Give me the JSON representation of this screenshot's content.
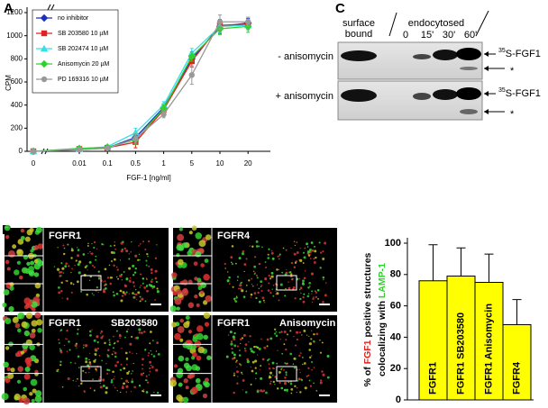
{
  "chart_data": [
    {
      "type": "line",
      "panel": "A",
      "ylabel": "CPM",
      "xlabel": "FGF-1 [ng/ml]",
      "categories": [
        "0",
        "0.01",
        "0.1",
        "0.5",
        "1",
        "5",
        "10",
        "20"
      ],
      "ylim": [
        0,
        1200
      ],
      "yticks": [
        0,
        200,
        400,
        600,
        800,
        1000,
        1200
      ],
      "series": [
        {
          "name": "no inhibitor",
          "color": "#1a2fbf",
          "marker": "diamond",
          "values": [
            0,
            15,
            30,
            120,
            380,
            800,
            1080,
            1110
          ],
          "errors": [
            5,
            10,
            15,
            40,
            30,
            40,
            60,
            40
          ]
        },
        {
          "name": "SB 203580 10 µM",
          "color": "#e0211d",
          "marker": "square",
          "values": [
            0,
            20,
            30,
            80,
            360,
            780,
            1090,
            1100
          ],
          "errors": [
            5,
            10,
            15,
            50,
            30,
            50,
            50,
            40
          ]
        },
        {
          "name": "SB 202474 10 µM",
          "color": "#33e0e6",
          "marker": "triangle",
          "values": [
            0,
            20,
            40,
            160,
            400,
            850,
            1080,
            1090
          ],
          "errors": [
            5,
            10,
            15,
            40,
            30,
            40,
            50,
            40
          ]
        },
        {
          "name": "Anisomycin 20 µM",
          "color": "#2ed12e",
          "marker": "diamond",
          "values": [
            0,
            25,
            35,
            100,
            370,
            820,
            1060,
            1080
          ],
          "errors": [
            5,
            10,
            15,
            40,
            30,
            40,
            50,
            50
          ]
        },
        {
          "name": "PD 169316 10 µM",
          "color": "#999999",
          "marker": "circle",
          "values": [
            0,
            15,
            25,
            110,
            320,
            660,
            1120,
            1120
          ],
          "errors": [
            5,
            10,
            15,
            40,
            30,
            80,
            60,
            40
          ]
        }
      ]
    },
    {
      "type": "bar",
      "color": "#ffff00",
      "ylabel": {
        "line1": [
          "% of ",
          "FGF1",
          " positive structures"
        ],
        "line2": [
          "colocalizing with ",
          "LAMP-1"
        ]
      },
      "ylabel_colors": [
        "#000000",
        "#e0211d",
        "#000000",
        "#000000",
        "#2ed12e"
      ],
      "categories": [
        "FGFR1",
        "FGFR1 SB203580",
        "FGFR1 Anisomycin",
        "FGFR4"
      ],
      "values": [
        76,
        79,
        75,
        48
      ],
      "errors": [
        23,
        18,
        18,
        16
      ],
      "ylim": [
        0,
        100
      ],
      "yticks": [
        0,
        20,
        40,
        60,
        80,
        100
      ]
    }
  ],
  "panel_b": {
    "label": "B",
    "images": [
      {
        "name": "FGFR1",
        "treatment": null
      },
      {
        "name": "FGFR4",
        "treatment": null
      },
      {
        "name": "FGFR1",
        "treatment": "SB203580"
      },
      {
        "name": "FGFR1",
        "treatment": "Anisomycin"
      }
    ]
  },
  "panel_c": {
    "label": "C",
    "lane_groups": [
      "surface\nbound",
      "endocytosed"
    ],
    "times": [
      "0",
      "15'",
      "30'",
      "60'"
    ],
    "rows": [
      "- anisomycin",
      "+ anisomycin"
    ],
    "band_label": {
      "sup": "35",
      "text": "S-FGF1"
    },
    "minor_band": "*"
  }
}
